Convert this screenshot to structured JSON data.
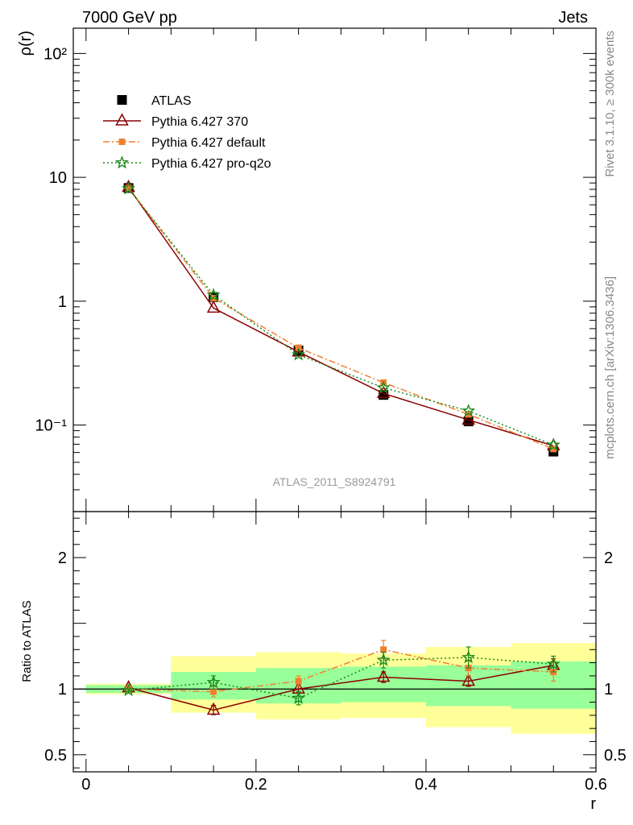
{
  "header": {
    "left": "7000 GeV pp",
    "right": "Jets"
  },
  "side_text": {
    "upper": "Rivet 3.1.10, ≥ 300k events",
    "lower": "mcplots.cern.ch [arXiv:1306.3436]"
  },
  "watermark": "ATLAS_2011_S8924791",
  "chart_data": [
    {
      "type": "scatter",
      "panel": "main",
      "ylabel": "ρ(r)",
      "yscale": "log",
      "ylim": [
        0.02,
        160
      ],
      "xlim": [
        -0.015,
        0.6
      ],
      "ytick_labels": [
        "10⁻¹",
        "1",
        "10",
        "10²"
      ],
      "ytick_values": [
        0.1,
        1,
        10,
        100
      ],
      "legend_position": "top-left",
      "x": [
        0.05,
        0.15,
        0.25,
        0.35,
        0.45,
        0.55
      ],
      "x_bin_edges": [
        0.0,
        0.1,
        0.2,
        0.3,
        0.4,
        0.5,
        0.6
      ],
      "series": [
        {
          "name": "ATLAS",
          "color": "#000000",
          "marker": "square",
          "line": "none",
          "values": [
            8.2,
            1.08,
            0.4,
            0.175,
            0.107,
            0.061
          ]
        },
        {
          "name": "Pythia 6.427 370",
          "color": "#8b0000",
          "marker": "open-triangle",
          "line": "solid",
          "values": [
            8.3,
            0.88,
            0.39,
            0.18,
            0.11,
            0.068
          ]
        },
        {
          "name": "Pythia 6.427 default",
          "color": "#f08030",
          "marker": "filled-square-small",
          "line": "dashdot",
          "values": [
            8.2,
            1.06,
            0.42,
            0.22,
            0.122,
            0.064
          ]
        },
        {
          "name": "Pythia 6.427 pro-q2o",
          "color": "#1a8a1a",
          "marker": "star",
          "line": "dotted",
          "values": [
            8.1,
            1.12,
            0.37,
            0.2,
            0.13,
            0.069
          ]
        }
      ]
    },
    {
      "type": "scatter",
      "panel": "ratio",
      "xlabel": "r",
      "ylabel": "Ratio to ATLAS",
      "ylim": [
        0.37,
        2.35
      ],
      "xlim": [
        -0.015,
        0.6
      ],
      "xtick_labels": [
        "0",
        "0.2",
        "0.4",
        "0.6"
      ],
      "xtick_values": [
        0,
        0.2,
        0.4,
        0.6
      ],
      "ytick_labels": [
        "0.5",
        "1",
        "2"
      ],
      "ytick_values": [
        0.5,
        1,
        2
      ],
      "x": [
        0.05,
        0.15,
        0.25,
        0.35,
        0.45,
        0.55
      ],
      "bands": {
        "yellow": {
          "color": "#ffff99",
          "lower": [
            0.96,
            0.82,
            0.77,
            0.78,
            0.71,
            0.66
          ],
          "upper": [
            1.04,
            1.25,
            1.28,
            1.27,
            1.32,
            1.35
          ]
        },
        "green": {
          "color": "#99ff99",
          "lower": [
            0.97,
            0.92,
            0.89,
            0.9,
            0.87,
            0.85
          ],
          "upper": [
            1.03,
            1.13,
            1.16,
            1.17,
            1.18,
            1.21
          ]
        }
      },
      "series": [
        {
          "name": "Pythia 6.427 370",
          "color": "#8b0000",
          "marker": "open-triangle",
          "line": "solid",
          "values": [
            1.01,
            0.84,
            1.0,
            1.09,
            1.06,
            1.18
          ],
          "errors": [
            0.01,
            0.035,
            0.02,
            0.04,
            0.04,
            0.05
          ]
        },
        {
          "name": "Pythia 6.427 default",
          "color": "#f08030",
          "marker": "filled-square-small",
          "line": "dashdot",
          "values": [
            1.0,
            0.98,
            1.06,
            1.3,
            1.16,
            1.13
          ],
          "errors": [
            0.01,
            0.04,
            0.04,
            0.07,
            0.06,
            0.07
          ]
        },
        {
          "name": "Pythia 6.427 pro-q2o",
          "color": "#1a8a1a",
          "marker": "star",
          "line": "dotted",
          "values": [
            0.99,
            1.05,
            0.93,
            1.22,
            1.24,
            1.19
          ],
          "errors": [
            0.01,
            0.05,
            0.05,
            0.06,
            0.08,
            0.06
          ]
        }
      ]
    }
  ]
}
